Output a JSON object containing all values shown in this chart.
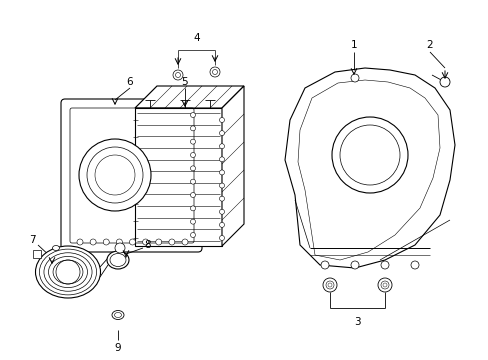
{
  "background_color": "#ffffff",
  "line_color": "#000000",
  "fig_width": 4.89,
  "fig_height": 3.6,
  "dpi": 100,
  "font_size": 7.5,
  "lw": 0.8
}
